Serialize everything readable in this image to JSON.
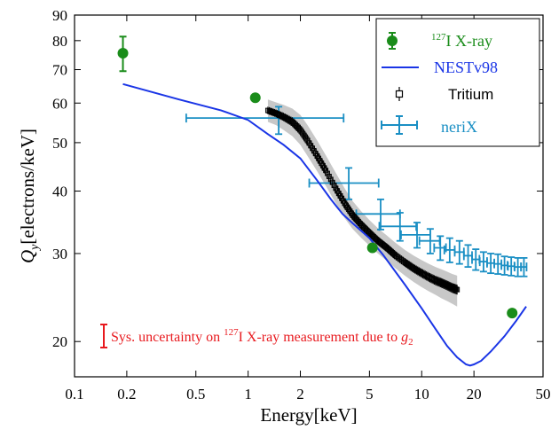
{
  "chart_data": {
    "type": "scatter",
    "xlabel": "Energy[keV]",
    "ylabel": {
      "main": "Q",
      "sub": "y",
      "rest": "[electrons/keV]"
    },
    "x_scale": "log",
    "y_scale": "log",
    "xlim": [
      0.1,
      50
    ],
    "ylim": [
      17,
      90
    ],
    "x_ticks": [
      {
        "value": 0.1,
        "label": "0.1"
      },
      {
        "value": 0.2,
        "label": "0.2"
      },
      {
        "value": 0.5,
        "label": "0.5"
      },
      {
        "value": 1,
        "label": "1"
      },
      {
        "value": 2,
        "label": "2"
      },
      {
        "value": 5,
        "label": "5"
      },
      {
        "value": 10,
        "label": "10"
      },
      {
        "value": 20,
        "label": "20"
      },
      {
        "value": 50,
        "label": "50"
      }
    ],
    "y_ticks": [
      {
        "value": 20,
        "label": "20"
      },
      {
        "value": 30,
        "label": "30"
      },
      {
        "value": 40,
        "label": "40"
      },
      {
        "value": 50,
        "label": "50"
      },
      {
        "value": 60,
        "label": "60"
      },
      {
        "value": 70,
        "label": "70"
      },
      {
        "value": 80,
        "label": "80"
      },
      {
        "value": 90,
        "label": "90"
      }
    ],
    "legend_position": "top-right",
    "grid": false,
    "series": [
      {
        "kind": "points_with_errors",
        "legend": {
          "sup": "127",
          "text": "I X-ray"
        },
        "color": "#1a8c1a",
        "points": [
          {
            "x": 0.19,
            "y": 75.5,
            "ylo": 69.5,
            "yhi": 81.5
          },
          {
            "x": 1.1,
            "y": 61.5,
            "ylo": 61.5,
            "yhi": 61.5
          },
          {
            "x": 5.2,
            "y": 30.8,
            "ylo": 30.8,
            "yhi": 30.8
          },
          {
            "x": 33.2,
            "y": 22.8,
            "ylo": 22.8,
            "yhi": 22.8
          }
        ]
      },
      {
        "kind": "line",
        "legend": {
          "text": "NESTv98"
        },
        "color": "#1a35e6",
        "x": [
          0.19,
          0.4,
          0.7,
          1.0,
          1.3,
          1.6,
          2.0,
          2.5,
          3.0,
          3.5,
          4.0,
          5.0,
          6.0,
          8.0,
          10.0,
          12.0,
          14.0,
          16.0,
          18.0,
          19.0,
          20.0,
          22.0,
          25.0,
          30.0,
          35.0,
          40.0
        ],
        "y": [
          65.5,
          61.0,
          58.0,
          55.5,
          52.0,
          49.5,
          46.5,
          42.0,
          38.5,
          36.0,
          34.5,
          32.2,
          29.8,
          26.0,
          23.3,
          21.2,
          19.6,
          18.6,
          18.0,
          17.9,
          18.0,
          18.3,
          19.1,
          20.5,
          22.0,
          23.5
        ]
      },
      {
        "kind": "band_points",
        "legend": {
          "text": "Tritium"
        },
        "color": "#000000",
        "band_color": "#c8c8c8",
        "x": [
          1.3,
          1.45,
          1.6,
          1.8,
          2.0,
          2.2,
          2.5,
          2.8,
          3.2,
          3.6,
          4.0,
          4.5,
          5.0,
          5.6,
          6.3,
          7.0,
          8.0,
          9.0,
          10.0,
          11.0,
          12.0,
          13.0,
          14.0,
          15.0,
          16.0
        ],
        "y": [
          58.0,
          57.2,
          56.3,
          55.0,
          53.0,
          50.5,
          47.0,
          44.0,
          40.5,
          37.8,
          35.8,
          34.2,
          33.0,
          31.8,
          30.8,
          29.8,
          28.8,
          28.0,
          27.4,
          26.9,
          26.5,
          26.2,
          25.9,
          25.6,
          25.4
        ],
        "band_lo": [
          55.0,
          54.2,
          53.0,
          51.5,
          49.5,
          47.0,
          43.8,
          41.0,
          37.8,
          35.3,
          33.6,
          32.2,
          31.1,
          30.0,
          29.0,
          28.1,
          27.1,
          26.3,
          25.7,
          25.2,
          24.8,
          24.4,
          24.1,
          23.8,
          23.5
        ],
        "band_hi": [
          61.0,
          60.2,
          59.5,
          58.5,
          56.8,
          54.2,
          50.5,
          47.2,
          43.5,
          40.5,
          38.2,
          36.4,
          35.0,
          33.7,
          32.6,
          31.6,
          30.5,
          29.7,
          29.1,
          28.6,
          28.2,
          27.9,
          27.6,
          27.3,
          27.1
        ]
      },
      {
        "kind": "cross_errors",
        "legend": {
          "text": "neriX"
        },
        "color": "#1a8fc4",
        "points": [
          {
            "x": 1.5,
            "y": 56.0,
            "xlo": 0.44,
            "xhi": 3.55,
            "ylo": 52.0,
            "yhi": 59.0
          },
          {
            "x": 3.8,
            "y": 41.5,
            "xlo": 2.25,
            "xhi": 5.65,
            "ylo": 38.5,
            "yhi": 44.5
          },
          {
            "x": 5.8,
            "y": 36.0,
            "xlo": 4.2,
            "xhi": 7.5,
            "ylo": 33.5,
            "yhi": 38.5
          },
          {
            "x": 7.5,
            "y": 34.0,
            "xlo": 5.7,
            "xhi": 9.3,
            "ylo": 31.8,
            "yhi": 36.2
          },
          {
            "x": 9.4,
            "y": 32.7,
            "xlo": 7.6,
            "xhi": 11.2,
            "ylo": 30.8,
            "yhi": 34.6
          },
          {
            "x": 11.2,
            "y": 31.8,
            "xlo": 9.7,
            "xhi": 12.7,
            "ylo": 30.0,
            "yhi": 33.6
          },
          {
            "x": 12.8,
            "y": 30.8,
            "xlo": 11.8,
            "xhi": 13.8,
            "ylo": 29.1,
            "yhi": 32.5
          },
          {
            "x": 14.5,
            "y": 30.5,
            "xlo": 13.5,
            "xhi": 15.5,
            "ylo": 28.8,
            "yhi": 32.2
          },
          {
            "x": 16.5,
            "y": 30.2,
            "xlo": 15.5,
            "xhi": 17.5,
            "ylo": 28.6,
            "yhi": 31.8
          },
          {
            "x": 18.5,
            "y": 29.7,
            "xlo": 17.5,
            "xhi": 19.5,
            "ylo": 28.2,
            "yhi": 31.2
          },
          {
            "x": 20.5,
            "y": 29.2,
            "xlo": 19.5,
            "xhi": 21.5,
            "ylo": 27.8,
            "yhi": 30.6
          },
          {
            "x": 22.7,
            "y": 28.9,
            "xlo": 21.6,
            "xhi": 23.8,
            "ylo": 27.6,
            "yhi": 30.2
          },
          {
            "x": 25.0,
            "y": 28.7,
            "xlo": 23.8,
            "xhi": 26.2,
            "ylo": 27.4,
            "yhi": 30.0
          },
          {
            "x": 27.5,
            "y": 28.6,
            "xlo": 26.2,
            "xhi": 28.8,
            "ylo": 27.3,
            "yhi": 29.9
          },
          {
            "x": 30.0,
            "y": 28.4,
            "xlo": 28.8,
            "xhi": 31.2,
            "ylo": 27.2,
            "yhi": 29.6
          },
          {
            "x": 32.8,
            "y": 28.3,
            "xlo": 31.4,
            "xhi": 34.2,
            "ylo": 27.1,
            "yhi": 29.5
          },
          {
            "x": 35.8,
            "y": 28.2,
            "xlo": 34.3,
            "xhi": 37.3,
            "ylo": 27.0,
            "yhi": 29.4
          },
          {
            "x": 38.8,
            "y": 28.2,
            "xlo": 37.4,
            "xhi": 40.2,
            "ylo": 27.0,
            "yhi": 29.4
          }
        ]
      }
    ],
    "annotation": {
      "color": "#e8191e",
      "text_before": "Sys. uncertainty on ",
      "sup": "127",
      "text_after": "I X-ray measurement due to ",
      "symbol": "g",
      "symbol_sub": "2"
    }
  }
}
